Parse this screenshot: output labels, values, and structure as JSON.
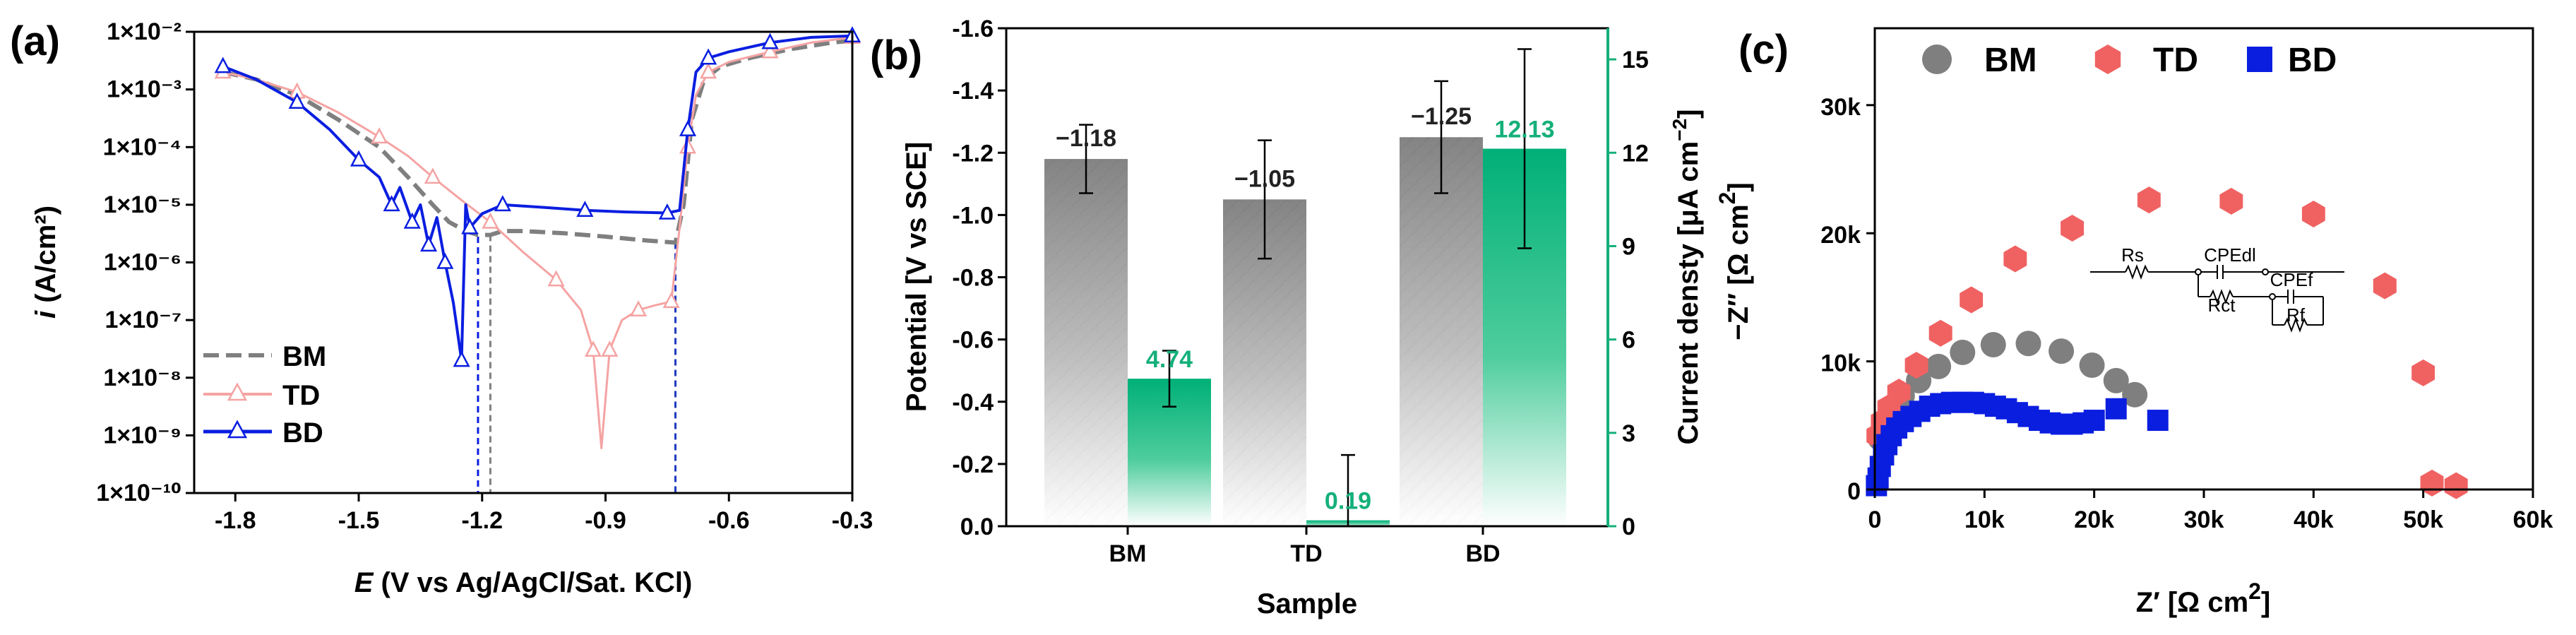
{
  "colors": {
    "BM": "#7f7f7f",
    "TD": "#f5a3a3",
    "TD_marker": "#f06262",
    "BD": "#0a1ee0",
    "current_axis": "#14b07a"
  },
  "chart_data": [
    {
      "panel": "(a)",
      "type": "line",
      "xlabel_italic": "E",
      "xlabel_rest": " (V vs Ag/AgCl/Sat. KCl)",
      "ylabel_italic": "i",
      "ylabel_rest": " (A/cm²)",
      "xlim": [
        -1.9,
        -0.3
      ],
      "ylim": [
        1e-10,
        0.01
      ],
      "yscale": "log",
      "xticks": [
        "-1.8",
        "-1.5",
        "-1.2",
        "-0.9",
        "-0.6",
        "-0.3"
      ],
      "yticks": [
        "1×10⁻¹⁰",
        "1×10⁻⁹",
        "1×10⁻⁸",
        "1×10⁻⁷",
        "1×10⁻⁶",
        "1×10⁻⁵",
        "1×10⁻⁴",
        "1×10⁻³",
        "1×10⁻²"
      ],
      "legend": [
        "BM",
        "TD",
        "BD"
      ],
      "legend_position": "bottom-left",
      "series": [
        {
          "name": "BM",
          "x": [
            -1.83,
            -1.75,
            -1.65,
            -1.55,
            -1.45,
            -1.38,
            -1.32,
            -1.28,
            -1.24,
            -1.21,
            -1.18,
            -1.15,
            -1.1,
            -1.0,
            -0.9,
            -0.8,
            -0.73,
            -0.71,
            -0.69,
            -0.66,
            -0.62,
            -0.55,
            -0.45,
            -0.35,
            -0.3
          ],
          "y": [
            0.002,
            0.0015,
            0.0008,
            0.0003,
            0.0001,
            3e-05,
            1e-05,
            5e-06,
            3.5e-06,
            3e-06,
            3e-06,
            3.5e-06,
            3.5e-06,
            3.2e-06,
            2.8e-06,
            2.4e-06,
            2.2e-06,
            1e-05,
            0.0003,
            0.0015,
            0.0025,
            0.0035,
            0.005,
            0.0065,
            0.007
          ]
        },
        {
          "name": "TD",
          "x": [
            -1.83,
            -1.75,
            -1.65,
            -1.55,
            -1.45,
            -1.38,
            -1.32,
            -1.25,
            -1.18,
            -1.1,
            -1.02,
            -0.96,
            -0.93,
            -0.91,
            -0.89,
            -0.86,
            -0.82,
            -0.78,
            -0.74,
            -0.72,
            -0.7,
            -0.68,
            -0.65,
            -0.6,
            -0.5,
            -0.4,
            -0.3
          ],
          "y": [
            0.002,
            0.0015,
            0.0009,
            0.0004,
            0.00015,
            7e-05,
            3e-05,
            1.2e-05,
            5e-06,
            1.5e-06,
            5e-07,
            1.5e-07,
            3e-08,
            6e-10,
            3e-08,
            1e-07,
            1.5e-07,
            1.8e-07,
            2.1e-07,
            4e-06,
            0.0001,
            0.0008,
            0.002,
            0.003,
            0.0045,
            0.0065,
            0.008
          ]
        },
        {
          "name": "BD",
          "x": [
            -1.83,
            -1.75,
            -1.65,
            -1.57,
            -1.5,
            -1.45,
            -1.42,
            -1.4,
            -1.37,
            -1.35,
            -1.33,
            -1.31,
            -1.29,
            -1.27,
            -1.25,
            -1.24,
            -1.23,
            -1.2,
            -1.15,
            -1.05,
            -0.95,
            -0.85,
            -0.75,
            -0.72,
            -0.7,
            -0.68,
            -0.65,
            -0.6,
            -0.5,
            -0.4,
            -0.3
          ],
          "y": [
            0.0025,
            0.0015,
            0.0006,
            0.0002,
            6e-05,
            3e-05,
            1e-05,
            2e-05,
            5e-06,
            1e-05,
            2e-06,
            6e-06,
            1e-06,
            2e-07,
            2e-08,
            1e-05,
            4e-06,
            7e-06,
            1e-05,
            9e-06,
            8e-06,
            7.5e-06,
            7.2e-06,
            8e-06,
            0.0002,
            0.002,
            0.0035,
            0.0045,
            0.0065,
            0.008,
            0.0085
          ]
        }
      ],
      "reference_lines_x": [
        -1.21,
        -1.18,
        -0.73
      ]
    },
    {
      "panel": "(b)",
      "type": "bar",
      "xlabel": "Sample",
      "ylabel_left": "Potential [V vs SCE]",
      "ylabel_right_prefix": "Current densty [μA cm",
      "ylabel_right_sup": "−2",
      "ylabel_right_suffix": "]",
      "categories": [
        "BM",
        "TD",
        "BD"
      ],
      "ylim_left": [
        0.0,
        -1.6
      ],
      "ylim_right": [
        0,
        16
      ],
      "yticks_left": [
        "0.0",
        "-0.2",
        "-0.4",
        "-0.6",
        "-0.8",
        "-1.0",
        "-1.2",
        "-1.4",
        "-1.6"
      ],
      "yticks_right": [
        "0",
        "3",
        "6",
        "9",
        "12",
        "15"
      ],
      "series": [
        {
          "name": "Potential",
          "axis": "left",
          "values": [
            -1.18,
            -1.05,
            -1.25
          ],
          "errors": [
            0.11,
            0.19,
            0.18
          ],
          "labels": [
            "−1.18",
            "−1.05",
            "−1.25"
          ]
        },
        {
          "name": "Current density",
          "axis": "right",
          "values": [
            4.74,
            0.19,
            12.13
          ],
          "errors": [
            0.9,
            2.1,
            3.2
          ],
          "labels": [
            "4.74",
            "0.19",
            "12.13"
          ]
        }
      ]
    },
    {
      "panel": "(c)",
      "type": "scatter",
      "xlabel_main": "Z′ [Ω cm",
      "xlabel_sup": "2",
      "xlabel_end": "]",
      "ylabel_main": "−Z″ [Ω cm",
      "ylabel_sup": "2",
      "ylabel_end": "]",
      "xlim": [
        0,
        60000
      ],
      "ylim": [
        0,
        36000
      ],
      "xticks": [
        "0",
        "10k",
        "20k",
        "30k",
        "40k",
        "50k",
        "60k"
      ],
      "yticks": [
        "0",
        "10k",
        "20k",
        "30k"
      ],
      "legend": [
        "BM",
        "TD",
        "BD"
      ],
      "legend_position": "top",
      "circuit_labels": [
        "Rs",
        "CPEdl",
        "Rct",
        "CPEf",
        "Rf"
      ],
      "series": [
        {
          "name": "BM",
          "x": [
            500,
            900,
            1500,
            2500,
            4000,
            5800,
            8000,
            10800,
            14000,
            17000,
            19800,
            22000,
            23700
          ],
          "y": [
            4000,
            5200,
            6300,
            7300,
            8500,
            9600,
            10700,
            11300,
            11400,
            10800,
            9700,
            8500,
            7400
          ]
        },
        {
          "name": "TD",
          "x": [
            300,
            700,
            1300,
            2200,
            3800,
            6000,
            8800,
            12800,
            18000,
            25000,
            32500,
            40000,
            46500,
            50000,
            50800,
            53000
          ],
          "y": [
            4200,
            5300,
            6400,
            7600,
            9700,
            12200,
            14800,
            18000,
            20400,
            22600,
            22500,
            21500,
            15900,
            9100,
            500,
            300
          ]
        },
        {
          "name": "BD",
          "x": [
            150,
            300,
            500,
            800,
            1100,
            1500,
            2000,
            2600,
            3300,
            4100,
            5000,
            6000,
            7000,
            8000,
            9000,
            10000,
            11000,
            12000,
            13000,
            14000,
            15000,
            16000,
            17000,
            18000,
            19000,
            20000,
            22000,
            25800
          ],
          "y": [
            300,
            900,
            1800,
            2700,
            3500,
            4200,
            4800,
            5300,
            5700,
            6100,
            6500,
            6700,
            6800,
            6800,
            6800,
            6700,
            6500,
            6300,
            6000,
            5700,
            5400,
            5200,
            5100,
            5100,
            5200,
            5400,
            6300,
            5400
          ]
        }
      ]
    }
  ]
}
